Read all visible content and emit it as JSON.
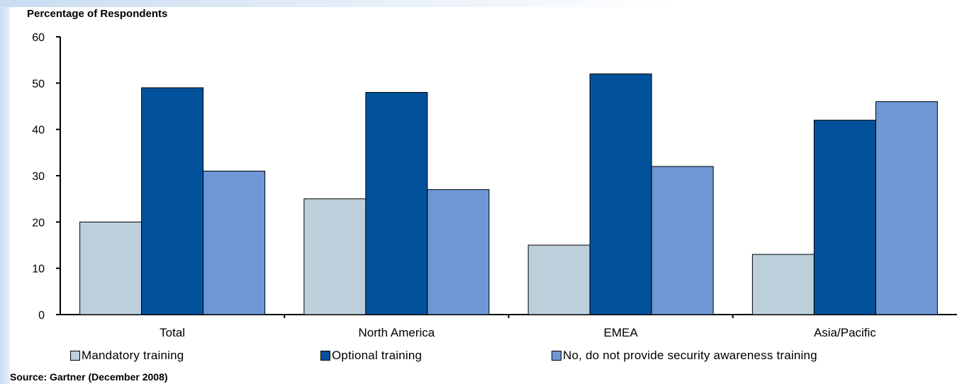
{
  "chart_data": {
    "type": "bar",
    "ylabel": "Percentage of Respondents",
    "ylim": [
      0,
      60
    ],
    "yticks": [
      0,
      10,
      20,
      30,
      40,
      50,
      60
    ],
    "categories": [
      "Total",
      "North America",
      "EMEA",
      "Asia/Pacific"
    ],
    "series": [
      {
        "name": "Mandatory training",
        "color": "#bccfdb",
        "values": [
          20,
          25,
          15,
          13
        ]
      },
      {
        "name": "Optional training",
        "color": "#02529b",
        "values": [
          49,
          48,
          52,
          42
        ]
      },
      {
        "name": "No, do not provide security awareness training",
        "color": "#6f97d5",
        "values": [
          31,
          27,
          32,
          46
        ]
      }
    ],
    "legend_position": "bottom",
    "grid": false,
    "source": "Source: Gartner (December 2008)"
  }
}
